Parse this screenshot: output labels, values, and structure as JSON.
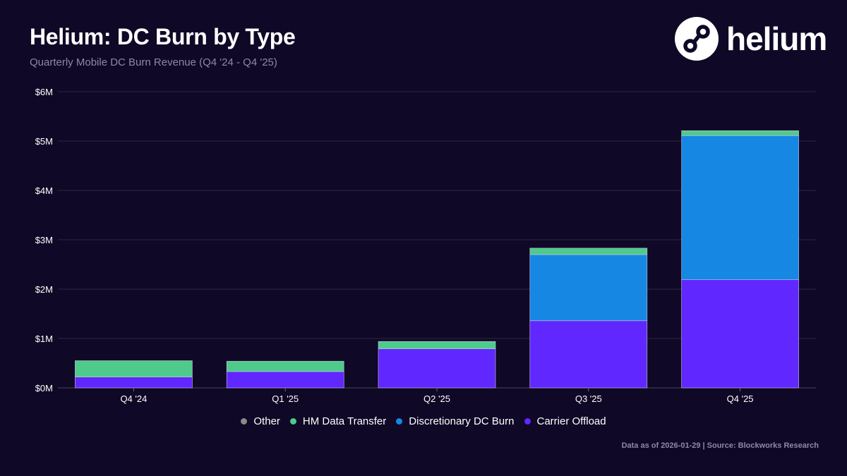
{
  "header": {
    "title": "Helium: DC Burn by Type",
    "subtitle": "Quarterly Mobile DC Burn Revenue (Q4 '24 - Q4 '25)"
  },
  "brand": {
    "wordmark": "helium",
    "icon": "helium-logo-icon"
  },
  "footnote": "Data as of 2026-01-29 | Source: Blockworks Research",
  "colors": {
    "background": "#0f0826",
    "grid": "#2d2740",
    "Other": "#8a8a8a",
    "HM Data Transfer": "#4ecb8a",
    "Discretionary DC Burn": "#1687e3",
    "Carrier Offload": "#6127ff"
  },
  "chart_data": {
    "type": "bar",
    "stacked": true,
    "title": "Helium: DC Burn by Type",
    "subtitle": "Quarterly Mobile DC Burn Revenue (Q4 '24 - Q4 '25)",
    "xlabel": "",
    "ylabel": "",
    "categories": [
      "Q4 '24",
      "Q1 '25",
      "Q2 '25",
      "Q3 '25",
      "Q4 '25"
    ],
    "ylim": [
      0,
      6000000
    ],
    "yticks": [
      0,
      1000000,
      2000000,
      3000000,
      4000000,
      5000000,
      6000000
    ],
    "ytick_labels": [
      "$0M",
      "$1M",
      "$2M",
      "$3M",
      "$4M",
      "$5M",
      "$6M"
    ],
    "grid": true,
    "legend_position": "bottom-center",
    "legend": [
      "Other",
      "HM Data Transfer",
      "Discretionary DC Burn",
      "Carrier Offload"
    ],
    "series": [
      {
        "name": "Carrier Offload",
        "values": [
          220000,
          330000,
          790000,
          1360000,
          2190000
        ]
      },
      {
        "name": "Discretionary DC Burn",
        "values": [
          0,
          0,
          0,
          1340000,
          2920000
        ]
      },
      {
        "name": "HM Data Transfer",
        "values": [
          330000,
          210000,
          150000,
          130000,
          100000
        ]
      },
      {
        "name": "Other",
        "values": [
          0,
          0,
          0,
          0,
          0
        ]
      }
    ]
  }
}
